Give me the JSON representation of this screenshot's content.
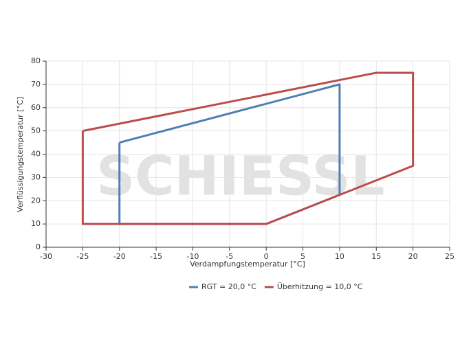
{
  "chart_data": {
    "type": "line",
    "watermark": "SCHIESSL",
    "x_label": "Verdampfungstemperatur [°C]",
    "y_label": "Verflüssigungstemperatur [°C]",
    "xlim": [
      -30,
      25
    ],
    "xticks": [
      -30,
      -25,
      -20,
      -15,
      -10,
      -5,
      0,
      5,
      10,
      15,
      20,
      25
    ],
    "ylim": [
      0,
      80
    ],
    "yticks": [
      0,
      10,
      20,
      30,
      40,
      50,
      60,
      70,
      80
    ],
    "grid": true,
    "legend": "bottom",
    "series": [
      {
        "name": "RGT = 20,0 °C",
        "color": "#4f7fb5",
        "x": [
          -20,
          10,
          10,
          0,
          -20,
          -20
        ],
        "values": [
          45,
          70,
          22.5,
          10,
          10,
          45
        ]
      },
      {
        "name": "Überhitzung = 10,0 °C",
        "color": "#bd4b4b",
        "x": [
          -25,
          15,
          20,
          20,
          0,
          -25,
          -25
        ],
        "values": [
          50,
          75,
          75,
          35,
          10,
          10,
          50
        ]
      }
    ]
  }
}
